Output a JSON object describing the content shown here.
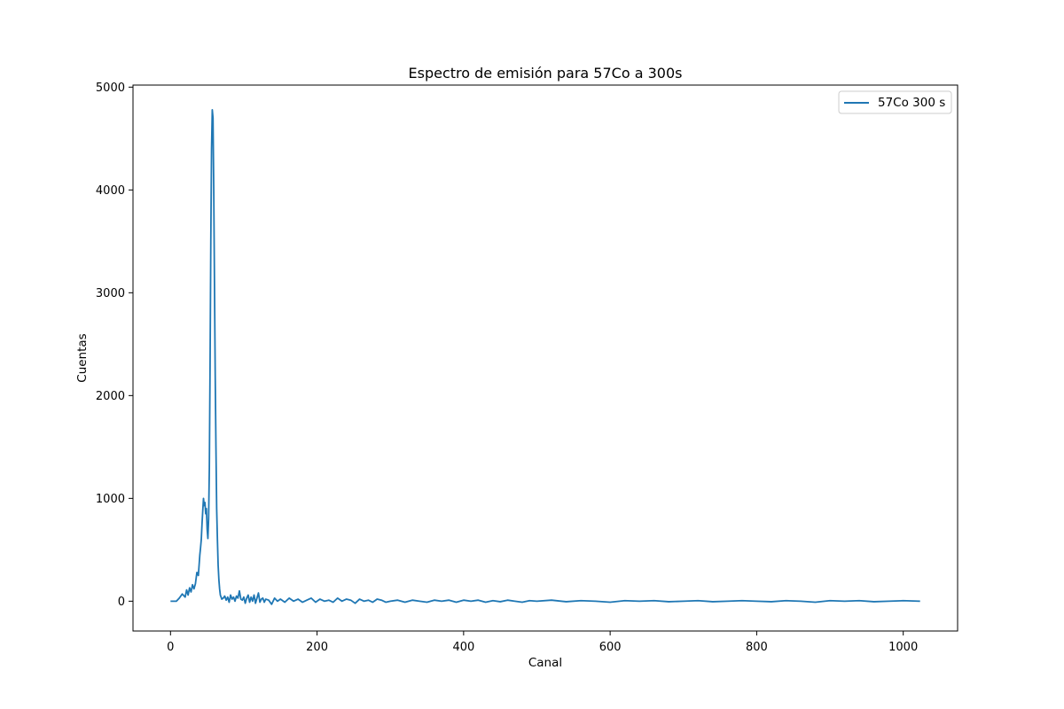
{
  "chart_data": {
    "type": "line",
    "title": "Espectro de emisión para 57Co a 300s",
    "xlabel": "Canal",
    "ylabel": "Cuentas",
    "xlim": [
      -51.2,
      1074.2
    ],
    "ylim": [
      -290,
      5020
    ],
    "xticks": [
      0,
      200,
      400,
      600,
      800,
      1000
    ],
    "yticks": [
      0,
      1000,
      2000,
      3000,
      4000,
      5000
    ],
    "xtick_labels": [
      "0",
      "200",
      "400",
      "600",
      "800",
      "1000"
    ],
    "ytick_labels": [
      "0",
      "1000",
      "2000",
      "3000",
      "4000",
      "5000"
    ],
    "grid": false,
    "legend_position": "top-right",
    "series": [
      {
        "name": "57Co 300 s",
        "color": "#1f77b4",
        "x": [
          0,
          8,
          12,
          16,
          20,
          22,
          24,
          26,
          28,
          30,
          32,
          34,
          36,
          38,
          40,
          41,
          42,
          43,
          44,
          45,
          46,
          47,
          48,
          49,
          50,
          51,
          52,
          53,
          54,
          55,
          56,
          57,
          58,
          59,
          60,
          61,
          62,
          63,
          64,
          65,
          66,
          67,
          68,
          69,
          70,
          72,
          74,
          76,
          78,
          80,
          82,
          84,
          86,
          88,
          90,
          92,
          94,
          96,
          98,
          100,
          102,
          104,
          106,
          108,
          110,
          112,
          114,
          116,
          118,
          120,
          122,
          124,
          126,
          128,
          130,
          134,
          138,
          142,
          146,
          150,
          156,
          162,
          168,
          174,
          180,
          186,
          192,
          198,
          204,
          210,
          216,
          222,
          228,
          234,
          240,
          246,
          252,
          258,
          264,
          270,
          276,
          282,
          288,
          294,
          300,
          310,
          320,
          330,
          340,
          350,
          360,
          370,
          380,
          390,
          400,
          410,
          420,
          430,
          440,
          450,
          460,
          470,
          480,
          490,
          500,
          520,
          540,
          560,
          580,
          600,
          620,
          640,
          660,
          680,
          700,
          720,
          740,
          760,
          780,
          800,
          820,
          840,
          860,
          880,
          900,
          920,
          940,
          960,
          980,
          1000,
          1023
        ],
        "y": [
          0,
          0,
          30,
          70,
          40,
          110,
          60,
          130,
          90,
          160,
          120,
          170,
          280,
          250,
          450,
          520,
          600,
          750,
          880,
          1000,
          930,
          960,
          850,
          900,
          700,
          610,
          800,
          1300,
          2300,
          3500,
          4400,
          4780,
          4700,
          4000,
          3100,
          2200,
          1500,
          900,
          600,
          350,
          210,
          120,
          60,
          40,
          20,
          30,
          50,
          10,
          40,
          -10,
          60,
          20,
          40,
          0,
          50,
          30,
          100,
          20,
          10,
          40,
          -20,
          30,
          60,
          -10,
          40,
          0,
          60,
          -20,
          30,
          80,
          -10,
          20,
          30,
          -10,
          20,
          10,
          -30,
          30,
          0,
          20,
          -10,
          30,
          0,
          20,
          -10,
          10,
          30,
          -10,
          20,
          0,
          10,
          -10,
          30,
          0,
          20,
          10,
          -20,
          20,
          0,
          10,
          -10,
          20,
          10,
          -10,
          0,
          10,
          -10,
          10,
          0,
          -10,
          10,
          0,
          10,
          -10,
          10,
          0,
          10,
          -10,
          5,
          -5,
          10,
          0,
          -10,
          5,
          0,
          10,
          -5,
          5,
          0,
          -10,
          5,
          0,
          5,
          -5,
          0,
          5,
          -5,
          0,
          5,
          0,
          -5,
          5,
          0,
          -10,
          5,
          0,
          5,
          -5,
          0,
          5,
          0
        ]
      }
    ]
  }
}
